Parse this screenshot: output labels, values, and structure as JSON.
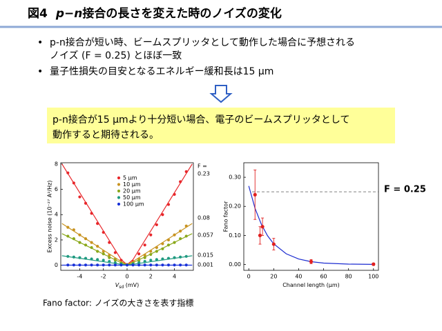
{
  "title": {
    "number": "図4",
    "italic": "p−n",
    "rest": "接合の長さを変えた時のノイズの変化"
  },
  "bullets": [
    [
      "p-n接合が短い時、ビームスプリッタとして動作した場合に予想される",
      "ノイズ (F = 0.25) とほぼ一致"
    ],
    [
      "量子性損失の目安となるエネルギー緩和長は15 μm"
    ]
  ],
  "highlight": [
    "p-n接合が15 μmより十分短い場合、電子のビームスプリッタとして",
    "動作すると期待される。"
  ],
  "footer": "Fano factor: ノイズの大きさを表す指標",
  "chart_data": [
    {
      "type": "scatter",
      "ylabel": "Excess noise (10⁻²⁷ A²/Hz)",
      "xlabel": [
        "V",
        "sd",
        " (mV)"
      ],
      "xlim": [
        -5.6,
        5.6
      ],
      "xticks": [
        -4,
        -2,
        0,
        2,
        4
      ],
      "ylim": [
        -0.4,
        8.1
      ],
      "yticks": [
        0,
        2,
        4,
        6,
        8
      ],
      "f_header": "F =",
      "x": [
        -5,
        -4.5,
        -4,
        -3.5,
        -3,
        -2.5,
        -2,
        -1.5,
        -1,
        -0.5,
        0,
        0.5,
        1,
        1.5,
        2,
        2.5,
        3,
        3.5,
        4,
        4.5,
        5
      ],
      "series": [
        {
          "name": "5 μm",
          "color": "#e8262a",
          "f_label": "0.23",
          "values": [
            7.3,
            6.5,
            5.4,
            4.9,
            4.1,
            3.3,
            2.6,
            1.8,
            1.0,
            0.4,
            0.05,
            0.3,
            0.9,
            1.6,
            2.4,
            3.2,
            4.0,
            4.8,
            5.6,
            6.6,
            7.4
          ],
          "fit": {
            "x": [
              -5.5,
              -0.5,
              0,
              0.5,
              5.5
            ],
            "values": [
              8.0,
              0.45,
              0.05,
              0.45,
              8.0
            ]
          }
        },
        {
          "name": "10 μm",
          "color": "#c89320",
          "f_label": "0.08",
          "values": [
            3.0,
            2.8,
            2.4,
            2.1,
            1.8,
            1.5,
            1.1,
            0.8,
            0.5,
            0.2,
            0.05,
            0.2,
            0.5,
            0.8,
            1.1,
            1.4,
            1.7,
            2.0,
            2.4,
            2.7,
            3.1
          ],
          "fit": {
            "x": [
              -5.5,
              -0.5,
              0,
              0.5,
              5.5
            ],
            "values": [
              3.3,
              0.3,
              0.05,
              0.3,
              3.3
            ]
          }
        },
        {
          "name": "20 μm",
          "color": "#8aa81a",
          "f_label": "0.057",
          "values": [
            2.3,
            2.1,
            1.8,
            1.6,
            1.4,
            1.1,
            0.9,
            0.6,
            0.4,
            0.15,
            0.03,
            0.15,
            0.35,
            0.6,
            0.85,
            1.1,
            1.3,
            1.6,
            1.8,
            2.1,
            2.3
          ],
          "fit": {
            "x": [
              -5.5,
              -0.5,
              0,
              0.5,
              5.5
            ],
            "values": [
              2.5,
              0.2,
              0.03,
              0.2,
              2.5
            ]
          }
        },
        {
          "name": "50 μm",
          "color": "#1f9a80",
          "f_label": "0.015",
          "values": [
            0.7,
            0.65,
            0.6,
            0.55,
            0.5,
            0.45,
            0.4,
            0.3,
            0.2,
            0.1,
            0.02,
            0.1,
            0.2,
            0.3,
            0.4,
            0.45,
            0.5,
            0.55,
            0.6,
            0.65,
            0.7
          ],
          "fit": {
            "x": [
              -5.5,
              -0.5,
              0,
              0.5,
              5.5
            ],
            "values": [
              0.75,
              0.08,
              0.02,
              0.08,
              0.75
            ]
          }
        },
        {
          "name": "100 μm",
          "color": "#1730d8",
          "f_label": "0.001",
          "values": [
            0.02,
            0.02,
            0.02,
            0.02,
            0.02,
            0.02,
            0.02,
            0.02,
            0.02,
            0.02,
            0.02,
            0.02,
            0.02,
            0.02,
            0.02,
            0.02,
            0.02,
            0.02,
            0.02,
            0.02,
            0.02
          ],
          "fit": {
            "x": [
              -5.5,
              5.5
            ],
            "values": [
              0.01,
              0.01
            ]
          }
        }
      ]
    },
    {
      "type": "scatter",
      "ylabel": "Fano factor",
      "xlabel": [
        "Channel length (μm)"
      ],
      "xlim": [
        -4,
        104
      ],
      "xticks": [
        0,
        20,
        40,
        60,
        80,
        100
      ],
      "ylim": [
        -0.02,
        0.35
      ],
      "yticks": [
        {
          "value": 0,
          "label": "0.00"
        },
        {
          "value": 0.1,
          "label": "0.10"
        },
        {
          "value": 0.2,
          "label": "0.20"
        },
        {
          "value": 0.3,
          "label": "0.30"
        }
      ],
      "reference": 0.25,
      "annotation": "F = 0.25",
      "x": [
        5,
        9,
        11,
        20,
        50,
        100
      ],
      "series": [
        {
          "color": "#e02020",
          "values": [
            0.24,
            0.1,
            0.13,
            0.07,
            0.01,
            0.001
          ],
          "errors": [
            0.085,
            0.03,
            0.03,
            0.02,
            0.007,
            0.004
          ],
          "fit": {
            "color": "#1a2ad0",
            "x": [
              0,
              5,
              10,
              15,
              20,
              30,
              40,
              50,
              60,
              80,
              100
            ],
            "values": [
              0.27,
              0.193,
              0.139,
              0.099,
              0.071,
              0.037,
              0.019,
              0.0096,
              0.005,
              0.0013,
              0.0003
            ]
          }
        }
      ]
    }
  ]
}
